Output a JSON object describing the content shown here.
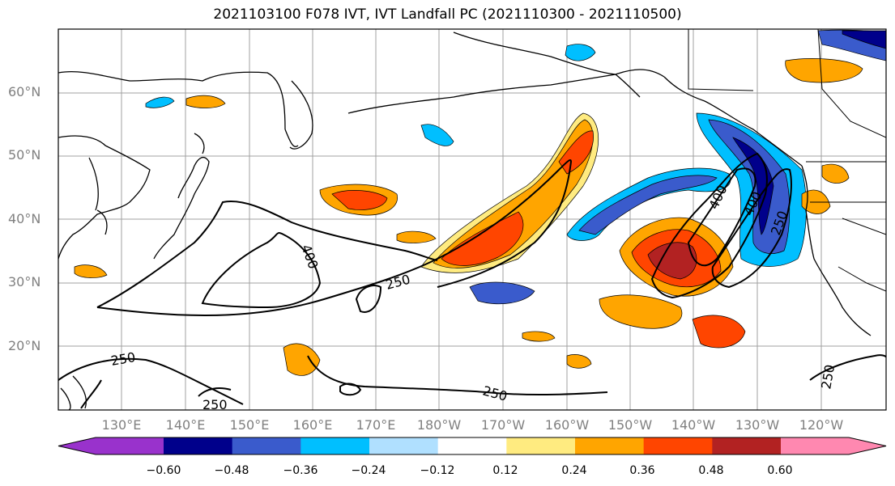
{
  "title": "2021103100 F078 IVT, IVT Landfall PC (2021110300 - 2021110500)",
  "lat_labels": [
    "60°N",
    "50°N",
    "40°N",
    "30°N",
    "20°N"
  ],
  "lon_labels": [
    "130°E",
    "140°E",
    "150°E",
    "160°E",
    "170°E",
    "180°W",
    "170°W",
    "160°W",
    "150°W",
    "140°W",
    "130°W",
    "120°W"
  ],
  "contour_labels": [
    "400",
    "250",
    "250",
    "250",
    "250",
    "400",
    "400",
    "250",
    "250"
  ],
  "colorbar": {
    "colors": [
      "#9932cc",
      "#00008b",
      "#3a5bcc",
      "#00bfff",
      "#b0e0ff",
      "#ffffff",
      "#ffeb80",
      "#ffa500",
      "#ff4500",
      "#b22222",
      "#ff88b0"
    ],
    "tick_labels": [
      "−0.60",
      "−0.48",
      "−0.36",
      "−0.24",
      "−0.12",
      "0.12",
      "0.24",
      "0.36",
      "0.48",
      "0.60"
    ]
  }
}
